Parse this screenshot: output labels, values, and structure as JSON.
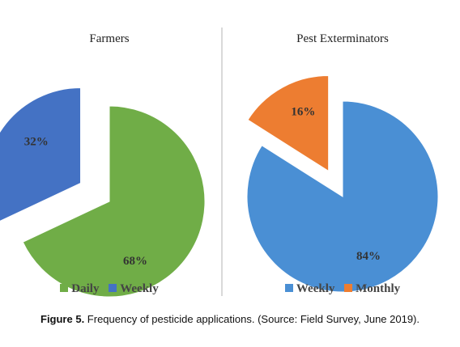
{
  "chart_data": [
    {
      "type": "pie",
      "title": "Farmers",
      "slices": [
        {
          "label": "Daily",
          "value": 68,
          "display": "68%",
          "color": "#70ad47"
        },
        {
          "label": "Weekly",
          "value": 32,
          "display": "32%",
          "color": "#4472c4"
        }
      ],
      "legend": [
        "Daily",
        "Weekly"
      ],
      "legend_position": "bottom",
      "exploded": "Weekly"
    },
    {
      "type": "pie",
      "title": "Pest Exterminators",
      "slices": [
        {
          "label": "Weekly",
          "value": 84,
          "display": "84%",
          "color": "#4a8fd4"
        },
        {
          "label": "Monthly",
          "value": 16,
          "display": "16%",
          "color": "#ed7d31"
        }
      ],
      "legend": [
        "Weekly",
        "Monthly"
      ],
      "legend_position": "bottom",
      "exploded": "Monthly"
    }
  ],
  "caption": {
    "label": "Figure 5.",
    "text": " Frequency of pesticide applications. (Source: Field Survey, June 2019)."
  }
}
